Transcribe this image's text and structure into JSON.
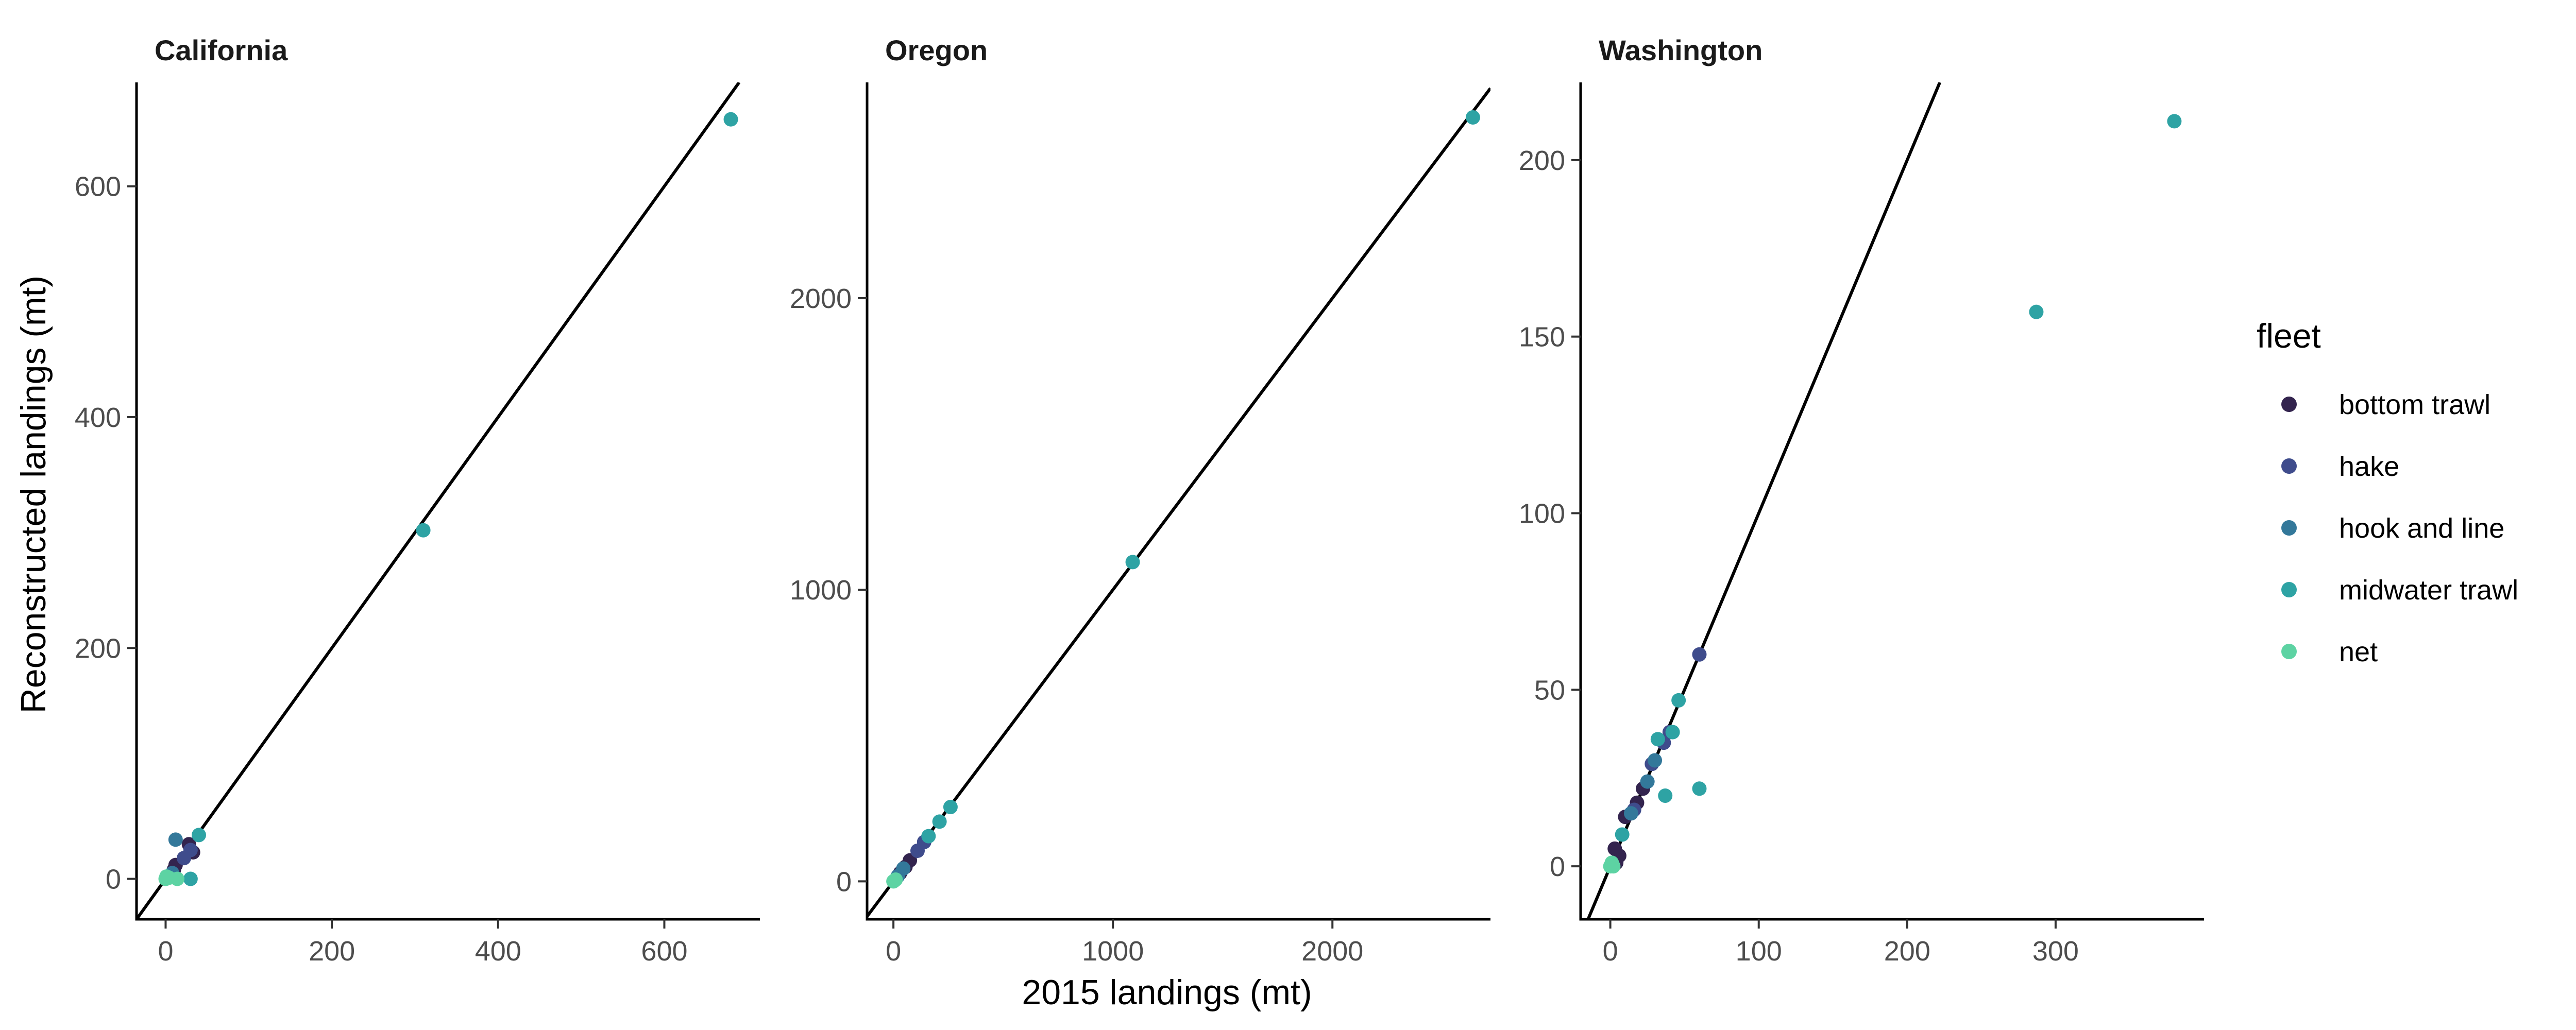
{
  "chart_data": [
    {
      "type": "scatter",
      "title": "California",
      "xlim": [
        -35,
        715
      ],
      "ylim": [
        -35,
        690
      ],
      "xticks": [
        0,
        200,
        400,
        600
      ],
      "yticks": [
        0,
        200,
        400,
        600
      ],
      "reference_line": "y = x",
      "series": [
        {
          "name": "bottom trawl",
          "points": [
            [
              10,
              8
            ],
            [
              12,
              12
            ],
            [
              33,
              23
            ],
            [
              28,
              30
            ]
          ]
        },
        {
          "name": "hake",
          "points": [
            [
              30,
              25
            ],
            [
              22,
              18
            ]
          ]
        },
        {
          "name": "hook and line",
          "points": [
            [
              12,
              34
            ],
            [
              8,
              5
            ]
          ]
        },
        {
          "name": "midwater trawl",
          "points": [
            [
              680,
              658
            ],
            [
              310,
              302
            ],
            [
              40,
              38
            ],
            [
              30,
              0
            ]
          ]
        },
        {
          "name": "net",
          "points": [
            [
              0,
              0
            ],
            [
              4,
              1
            ],
            [
              14,
              0
            ],
            [
              1,
              2
            ]
          ]
        }
      ]
    },
    {
      "type": "scatter",
      "title": "Oregon",
      "xlim": [
        -120,
        2720
      ],
      "ylim": [
        -130,
        2740
      ],
      "xticks": [
        0,
        1000,
        2000
      ],
      "yticks": [
        0,
        1000,
        2000
      ],
      "reference_line": "y = x",
      "series": [
        {
          "name": "bottom trawl",
          "points": [
            [
              30,
              28
            ],
            [
              55,
              50
            ],
            [
              75,
              72
            ]
          ]
        },
        {
          "name": "hake",
          "points": [
            [
              110,
              105
            ],
            [
              140,
              135
            ]
          ]
        },
        {
          "name": "hook and line",
          "points": [
            [
              20,
              18
            ],
            [
              45,
              44
            ]
          ]
        },
        {
          "name": "midwater trawl",
          "points": [
            [
              2640,
              2620
            ],
            [
              1090,
              1095
            ],
            [
              260,
              255
            ],
            [
              210,
              205
            ],
            [
              160,
              155
            ]
          ]
        },
        {
          "name": "net",
          "points": [
            [
              0,
              0
            ],
            [
              5,
              3
            ],
            [
              10,
              6
            ]
          ]
        }
      ]
    },
    {
      "type": "scatter",
      "title": "Washington",
      "xlim": [
        -20,
        400
      ],
      "ylim": [
        -15,
        222
      ],
      "xticks": [
        0,
        100,
        200,
        300
      ],
      "yticks": [
        0,
        50,
        100,
        150,
        200
      ],
      "reference_line": "y = x",
      "series": [
        {
          "name": "bottom trawl",
          "points": [
            [
              3,
              5
            ],
            [
              6,
              3
            ],
            [
              10,
              14
            ],
            [
              18,
              18
            ],
            [
              22,
              22
            ],
            [
              4,
              1
            ]
          ]
        },
        {
          "name": "hake",
          "points": [
            [
              60,
              60
            ],
            [
              28,
              29
            ],
            [
              36,
              35
            ],
            [
              40,
              38
            ],
            [
              16,
              16
            ]
          ]
        },
        {
          "name": "hook and line",
          "points": [
            [
              25,
              24
            ],
            [
              30,
              30
            ],
            [
              14,
              15
            ]
          ]
        },
        {
          "name": "midwater trawl",
          "points": [
            [
              380,
              211
            ],
            [
              287,
              157
            ],
            [
              46,
              47
            ],
            [
              42,
              38
            ],
            [
              32,
              36
            ],
            [
              60,
              22
            ],
            [
              37,
              20
            ],
            [
              8,
              9
            ]
          ]
        },
        {
          "name": "net",
          "points": [
            [
              0,
              0
            ],
            [
              1,
              1
            ],
            [
              2,
              0
            ]
          ]
        }
      ]
    }
  ],
  "axes": {
    "xlabel": "2015 landings (mt)",
    "ylabel": "Reconstructed landings (mt)"
  },
  "legend": {
    "title": "fleet",
    "placement": "right",
    "items": [
      {
        "label": "bottom trawl",
        "color": "#33244e"
      },
      {
        "label": "hake",
        "color": "#3f4c8c"
      },
      {
        "label": "hook and line",
        "color": "#33789a"
      },
      {
        "label": "midwater trawl",
        "color": "#2ea3a4"
      },
      {
        "label": "net",
        "color": "#5dd3a3"
      }
    ]
  }
}
